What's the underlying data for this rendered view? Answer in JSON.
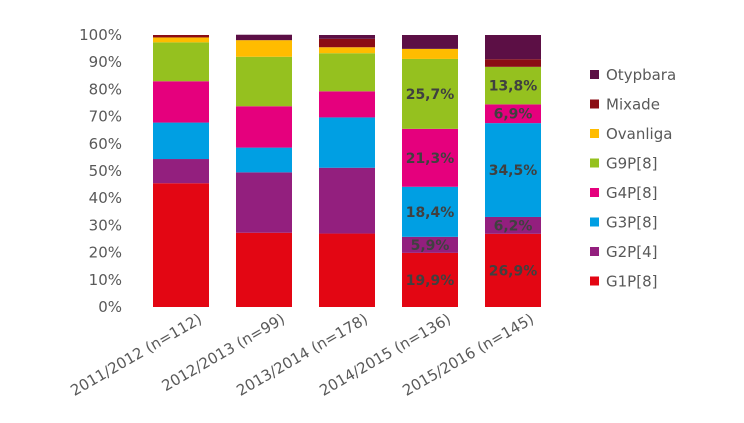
{
  "chart_data": {
    "type": "bar",
    "stacked": true,
    "percent": true,
    "title": "",
    "xlabel": "",
    "ylabel": "",
    "ylim": [
      0,
      100
    ],
    "yticks": [
      "0%",
      "10%",
      "20%",
      "30%",
      "40%",
      "50%",
      "60%",
      "70%",
      "80%",
      "90%",
      "100%"
    ],
    "categories": [
      "2011/2012 (n=112)",
      "2012/2013 (n=99)",
      "2013/2014 (n=178)",
      "2014/2015 (n=136)",
      "2015/2016 (n=145)"
    ],
    "series": [
      {
        "name": "G1P[8]",
        "color": "#e30613",
        "values": [
          45.5,
          27.3,
          27.0,
          19.9,
          26.9
        ],
        "labels": [
          "",
          "",
          "",
          "19,9%",
          "26,9%"
        ]
      },
      {
        "name": "G2P[4]",
        "color": "#931f7e",
        "values": [
          8.9,
          22.2,
          24.2,
          5.9,
          6.2
        ],
        "labels": [
          "",
          "",
          "",
          "5,9%",
          "6,2%"
        ]
      },
      {
        "name": "G3P[8]",
        "color": "#009fe3",
        "values": [
          13.4,
          9.1,
          18.5,
          18.4,
          34.5
        ],
        "labels": [
          "",
          "",
          "",
          "18,4%",
          "34,5%"
        ]
      },
      {
        "name": "G4P[8]",
        "color": "#e5007d",
        "values": [
          15.2,
          15.2,
          9.6,
          21.3,
          6.9
        ],
        "labels": [
          "",
          "",
          "",
          "21,3%",
          "6,9%"
        ]
      },
      {
        "name": "G9P[8]",
        "color": "#95c11f",
        "values": [
          14.3,
          18.2,
          14.0,
          25.7,
          13.8
        ],
        "labels": [
          "",
          "",
          "",
          "25,7%",
          "13,8%"
        ]
      },
      {
        "name": "Ovanliga",
        "color": "#ffbc00",
        "values": [
          1.8,
          6.1,
          2.2,
          3.7,
          0
        ],
        "labels": [
          "",
          "",
          "",
          "",
          ""
        ]
      },
      {
        "name": "Mixade",
        "color": "#8b0d14",
        "values": [
          0.9,
          0,
          3.1,
          0,
          2.8
        ],
        "labels": [
          "",
          "",
          "",
          "",
          ""
        ]
      },
      {
        "name": "Otypbara",
        "color": "#5c0f45",
        "values": [
          0,
          2.0,
          1.4,
          5.1,
          8.9
        ],
        "labels": [
          "",
          "",
          "",
          "",
          ""
        ]
      }
    ],
    "legend_order": [
      "Otypbara",
      "Mixade",
      "Ovanliga",
      "G9P[8]",
      "G4P[8]",
      "G3P[8]",
      "G2P[4]",
      "G1P[8]"
    ],
    "legend_position": "right",
    "grid": false
  }
}
